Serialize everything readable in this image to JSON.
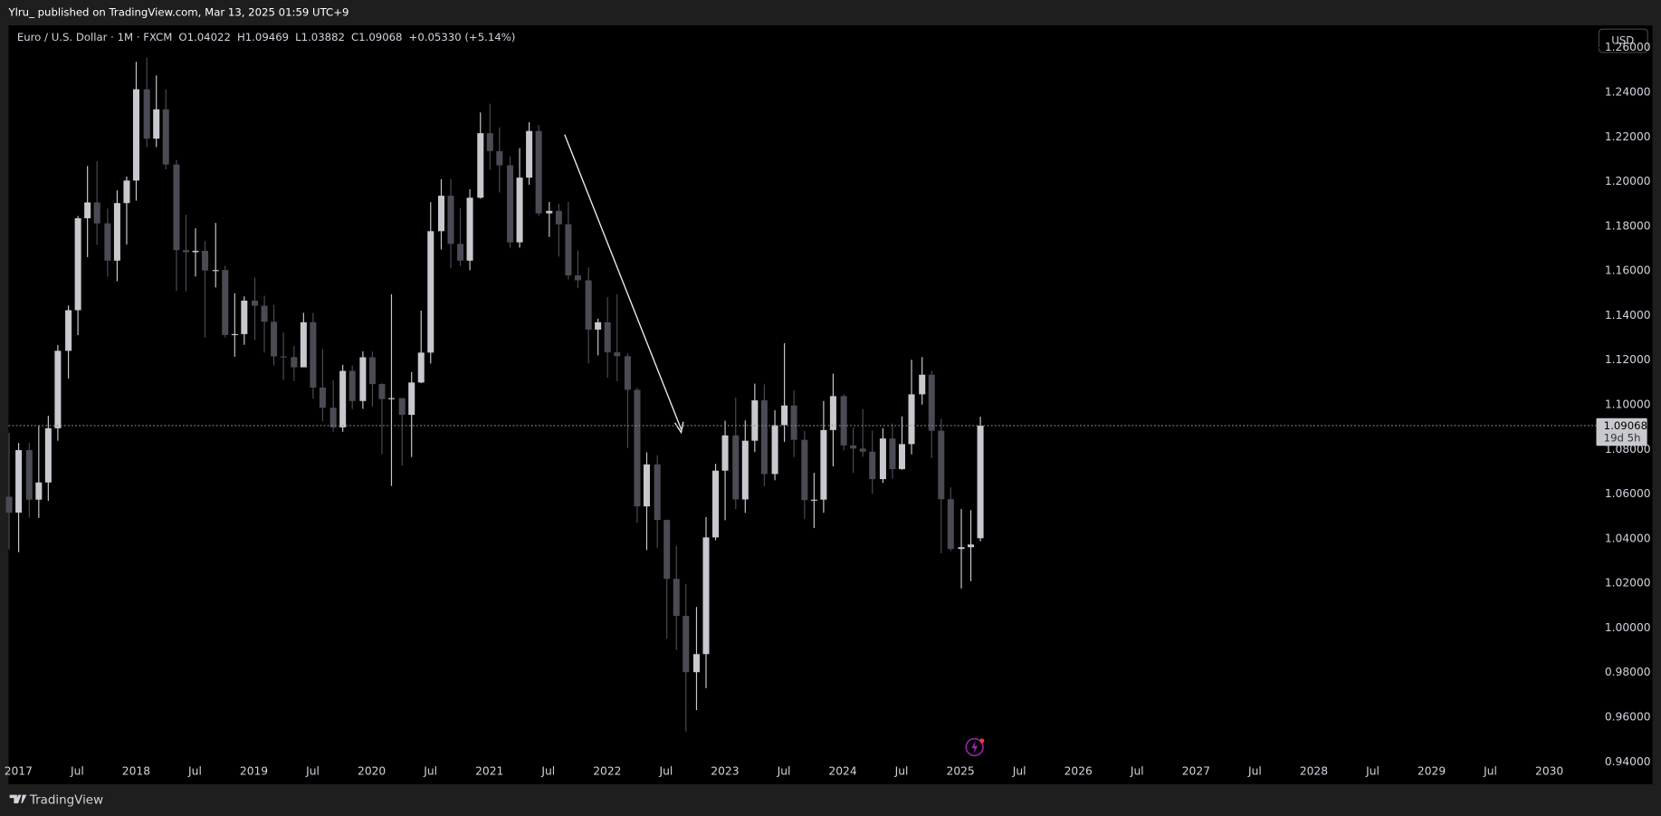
{
  "header": {
    "publisher": "Ylru_ published on TradingView.com, Mar 13, 2025 01:59 UTC+9",
    "symbol": "Euro / U.S. Dollar · 1M · FXCM",
    "ohlc": [
      {
        "key": "O",
        "value": "1.04022"
      },
      {
        "key": "H",
        "value": "1.09469"
      },
      {
        "key": "L",
        "value": "1.03882"
      },
      {
        "key": "C",
        "value": "1.09068"
      }
    ],
    "change": "+0.05330 (+5.14%)",
    "currency": "USD"
  },
  "footer": {
    "brand": "TradingView"
  },
  "chart_data": {
    "type": "candlestick",
    "up_color": "#c8c8cf",
    "down_color": "#4b4b55",
    "x": [
      "2016-12",
      "2017-01",
      "2017-02",
      "2017-03",
      "2017-04",
      "2017-05",
      "2017-06",
      "2017-07",
      "2017-08",
      "2017-09",
      "2017-10",
      "2017-11",
      "2017-12",
      "2018-01",
      "2018-02",
      "2018-03",
      "2018-04",
      "2018-05",
      "2018-06",
      "2018-07",
      "2018-08",
      "2018-09",
      "2018-10",
      "2018-11",
      "2018-12",
      "2019-01",
      "2019-02",
      "2019-03",
      "2019-04",
      "2019-05",
      "2019-06",
      "2019-07",
      "2019-08",
      "2019-09",
      "2019-10",
      "2019-11",
      "2019-12",
      "2020-01",
      "2020-02",
      "2020-03",
      "2020-04",
      "2020-05",
      "2020-06",
      "2020-07",
      "2020-08",
      "2020-09",
      "2020-10",
      "2020-11",
      "2020-12",
      "2021-01",
      "2021-02",
      "2021-03",
      "2021-04",
      "2021-05",
      "2021-06",
      "2021-07",
      "2021-08",
      "2021-09",
      "2021-10",
      "2021-11",
      "2021-12",
      "2022-01",
      "2022-02",
      "2022-03",
      "2022-04",
      "2022-05",
      "2022-06",
      "2022-07",
      "2022-08",
      "2022-09",
      "2022-10",
      "2022-11",
      "2022-12",
      "2023-01",
      "2023-02",
      "2023-03",
      "2023-04",
      "2023-05",
      "2023-06",
      "2023-07",
      "2023-08",
      "2023-09",
      "2023-10",
      "2023-11",
      "2023-12",
      "2024-01",
      "2024-02",
      "2024-03",
      "2024-04",
      "2024-05",
      "2024-06",
      "2024-07",
      "2024-08",
      "2024-09",
      "2024-10",
      "2024-11",
      "2024-12",
      "2025-01",
      "2025-02",
      "2025-03"
    ],
    "open": [
      1.0588,
      1.0517,
      1.0797,
      1.0575,
      1.0652,
      1.0895,
      1.1242,
      1.1424,
      1.1836,
      1.1907,
      1.1813,
      1.1646,
      1.1904,
      1.2005,
      1.2414,
      1.2193,
      1.2324,
      1.2077,
      1.1693,
      1.1684,
      1.169,
      1.1602,
      1.1604,
      1.1313,
      1.1317,
      1.1467,
      1.1444,
      1.1372,
      1.1217,
      1.1214,
      1.1168,
      1.137,
      1.1077,
      1.0987,
      1.0899,
      1.1152,
      1.1017,
      1.1213,
      1.1093,
      1.1026,
      1.103,
      1.0955,
      1.11,
      1.1234,
      1.1778,
      1.1937,
      1.1721,
      1.1646,
      1.1928,
      1.2217,
      1.2137,
      1.2073,
      1.1728,
      1.2018,
      1.2227,
      1.1858,
      1.1869,
      1.1809,
      1.158,
      1.1558,
      1.1337,
      1.137,
      1.1235,
      1.1218,
      1.1067,
      1.0545,
      1.0733,
      1.0484,
      1.022,
      1.0054,
      0.9802,
      0.9883,
      1.0406,
      1.0705,
      1.0863,
      1.0576,
      1.0839,
      1.102,
      1.069,
      1.0909,
      1.0997,
      1.0843,
      1.0573,
      1.0575,
      1.0887,
      1.1039,
      1.0818,
      1.0804,
      1.079,
      1.0667,
      1.0849,
      1.0712,
      1.0824,
      1.1047,
      1.1135,
      1.0884,
      1.0577,
      1.0354,
      1.0362,
      1.04022
    ],
    "high": [
      1.0874,
      1.0829,
      1.0829,
      1.0906,
      1.0951,
      1.1268,
      1.1445,
      1.1846,
      1.207,
      1.2092,
      1.188,
      1.1961,
      1.2023,
      1.2537,
      1.2556,
      1.2476,
      1.2414,
      1.2097,
      1.1852,
      1.1791,
      1.1734,
      1.1815,
      1.1624,
      1.15,
      1.1486,
      1.157,
      1.1489,
      1.1448,
      1.1324,
      1.1264,
      1.1412,
      1.1412,
      1.125,
      1.1109,
      1.1179,
      1.1176,
      1.124,
      1.1239,
      1.1097,
      1.1495,
      1.1019,
      1.1147,
      1.1422,
      1.1908,
      1.2011,
      1.2011,
      1.1881,
      1.1966,
      1.231,
      1.2349,
      1.2243,
      1.2113,
      1.215,
      1.2266,
      1.2254,
      1.1909,
      1.1901,
      1.1909,
      1.1692,
      1.1616,
      1.1386,
      1.1483,
      1.1495,
      1.1231,
      1.1076,
      1.0787,
      1.0774,
      1.0486,
      1.0369,
      1.0198,
      1.0094,
      1.0497,
      1.0736,
      1.0929,
      1.1033,
      1.093,
      1.1095,
      1.1092,
      1.0976,
      1.1276,
      1.1065,
      1.0882,
      1.0695,
      1.1017,
      1.114,
      1.1046,
      1.0898,
      1.0981,
      1.0885,
      1.0895,
      1.0916,
      1.0948,
      1.1202,
      1.1214,
      1.1153,
      1.0937,
      1.063,
      1.0533,
      1.0528,
      1.09469
    ],
    "low": [
      1.0352,
      1.034,
      1.0494,
      1.0493,
      1.057,
      1.0839,
      1.1118,
      1.1312,
      1.1662,
      1.1717,
      1.1574,
      1.1554,
      1.1718,
      1.1915,
      1.2154,
      1.2155,
      1.2055,
      1.151,
      1.1508,
      1.1575,
      1.1301,
      1.1526,
      1.1302,
      1.1216,
      1.1269,
      1.129,
      1.1234,
      1.1176,
      1.1111,
      1.1107,
      1.1181,
      1.1027,
      1.0926,
      1.0879,
      1.0879,
      1.0981,
      1.0982,
      1.0992,
      1.0778,
      1.0636,
      1.0727,
      1.0766,
      1.1097,
      1.1185,
      1.1696,
      1.1612,
      1.1622,
      1.1603,
      1.1924,
      1.2053,
      1.1952,
      1.1704,
      1.1704,
      1.1986,
      1.1847,
      1.1752,
      1.1664,
      1.1562,
      1.1524,
      1.1186,
      1.1222,
      1.1121,
      1.1106,
      1.0806,
      1.0471,
      1.0349,
      1.0359,
      0.9952,
      0.9901,
      0.9536,
      0.9632,
      0.973,
      1.0393,
      1.0483,
      1.0533,
      1.0516,
      1.0788,
      1.0635,
      1.0662,
      1.0834,
      1.0766,
      1.0488,
      1.0448,
      1.0516,
      1.0724,
      1.0795,
      1.0695,
      1.0767,
      1.0601,
      1.065,
      1.0668,
      1.0709,
      1.0778,
      1.1001,
      1.0761,
      1.0335,
      1.0344,
      1.0177,
      1.021,
      1.03882
    ],
    "close": [
      1.0517,
      1.0797,
      1.0575,
      1.0652,
      1.0895,
      1.1242,
      1.1424,
      1.1836,
      1.1907,
      1.1813,
      1.1646,
      1.1904,
      1.2005,
      1.2414,
      1.2193,
      1.2324,
      1.2077,
      1.1693,
      1.1684,
      1.169,
      1.1602,
      1.1604,
      1.1313,
      1.1317,
      1.1467,
      1.1444,
      1.1372,
      1.1217,
      1.1214,
      1.1168,
      1.137,
      1.1077,
      1.0987,
      1.0899,
      1.1152,
      1.1017,
      1.1213,
      1.1093,
      1.1026,
      1.103,
      1.0955,
      1.11,
      1.1234,
      1.1778,
      1.1937,
      1.1721,
      1.1646,
      1.1928,
      1.2217,
      1.2137,
      1.2073,
      1.1728,
      1.2018,
      1.2227,
      1.1858,
      1.1869,
      1.1809,
      1.158,
      1.1558,
      1.1337,
      1.137,
      1.1235,
      1.1218,
      1.1067,
      1.0545,
      1.0733,
      1.0484,
      1.022,
      1.0054,
      0.9802,
      0.9883,
      1.0406,
      1.0705,
      1.0863,
      1.0576,
      1.0839,
      1.102,
      1.069,
      1.0909,
      1.0997,
      1.0843,
      1.0573,
      1.0575,
      1.0887,
      1.1039,
      1.0818,
      1.0804,
      1.079,
      1.0667,
      1.0849,
      1.0712,
      1.0824,
      1.1047,
      1.1135,
      1.0884,
      1.0577,
      1.0354,
      1.0362,
      1.0374,
      1.09068
    ],
    "xlim": [
      "2016-12",
      "2030-06"
    ],
    "xticks": [
      {
        "value": "2017-01",
        "label": "2017"
      },
      {
        "value": "2017-07",
        "label": "Jul"
      },
      {
        "value": "2018-01",
        "label": "2018"
      },
      {
        "value": "2018-07",
        "label": "Jul"
      },
      {
        "value": "2019-01",
        "label": "2019"
      },
      {
        "value": "2019-07",
        "label": "Jul"
      },
      {
        "value": "2020-01",
        "label": "2020"
      },
      {
        "value": "2020-07",
        "label": "Jul"
      },
      {
        "value": "2021-01",
        "label": "2021"
      },
      {
        "value": "2021-07",
        "label": "Jul"
      },
      {
        "value": "2022-01",
        "label": "2022"
      },
      {
        "value": "2022-07",
        "label": "Jul"
      },
      {
        "value": "2023-01",
        "label": "2023"
      },
      {
        "value": "2023-07",
        "label": "Jul"
      },
      {
        "value": "2024-01",
        "label": "2024"
      },
      {
        "value": "2024-07",
        "label": "Jul"
      },
      {
        "value": "2025-01",
        "label": "2025"
      },
      {
        "value": "2025-07",
        "label": "Jul"
      },
      {
        "value": "2026-01",
        "label": "2026"
      },
      {
        "value": "2026-07",
        "label": "Jul"
      },
      {
        "value": "2027-01",
        "label": "2027"
      },
      {
        "value": "2027-07",
        "label": "Jul"
      },
      {
        "value": "2028-01",
        "label": "2028"
      },
      {
        "value": "2028-07",
        "label": "Jul"
      },
      {
        "value": "2029-01",
        "label": "2029"
      },
      {
        "value": "2029-07",
        "label": "Jul"
      },
      {
        "value": "2030-01",
        "label": "2030"
      }
    ],
    "ylim": [
      0.93,
      1.27
    ],
    "yticks": [
      {
        "value": 0.94,
        "label": "0.94000"
      },
      {
        "value": 0.96,
        "label": "0.96000"
      },
      {
        "value": 0.98,
        "label": "0.98000"
      },
      {
        "value": 1.0,
        "label": "1.00000"
      },
      {
        "value": 1.02,
        "label": "1.02000"
      },
      {
        "value": 1.04,
        "label": "1.04000"
      },
      {
        "value": 1.06,
        "label": "1.06000"
      },
      {
        "value": 1.08,
        "label": "1.08000"
      },
      {
        "value": 1.1,
        "label": "1.10000"
      },
      {
        "value": 1.12,
        "label": "1.12000"
      },
      {
        "value": 1.14,
        "label": "1.14000"
      },
      {
        "value": 1.16,
        "label": "1.16000"
      },
      {
        "value": 1.18,
        "label": "1.18000"
      },
      {
        "value": 1.2,
        "label": "1.20000"
      },
      {
        "value": 1.22,
        "label": "1.22000"
      },
      {
        "value": 1.24,
        "label": "1.24000"
      },
      {
        "value": 1.26,
        "label": "1.26000"
      }
    ],
    "last_price": {
      "value": 1.09068,
      "label": "1.09068"
    },
    "countdown": "19d 5h"
  }
}
